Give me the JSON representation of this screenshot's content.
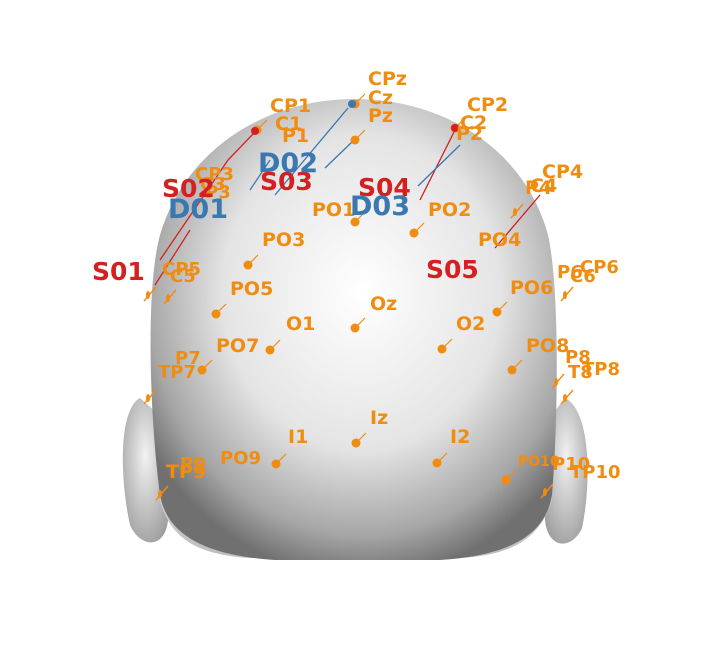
{
  "colors": {
    "electrode": "#f08c10",
    "source": "#d42020",
    "detector": "#3a78b0",
    "head_light": "#f4f4f4",
    "head_dark": "#7a7a7a"
  },
  "electrodes": [
    {
      "id": "e-cpz",
      "label": "CPz"
    },
    {
      "id": "e-cz",
      "label": "Cz"
    },
    {
      "id": "e-pz",
      "label": "Pz"
    },
    {
      "id": "e-cp1",
      "label": "CP1"
    },
    {
      "id": "e-c1",
      "label": "C1"
    },
    {
      "id": "e-p1",
      "label": "P1"
    },
    {
      "id": "e-cp2",
      "label": "CP2"
    },
    {
      "id": "e-c2",
      "label": "C2"
    },
    {
      "id": "e-p2",
      "label": "P2"
    },
    {
      "id": "e-cp3",
      "label": "CP3"
    },
    {
      "id": "e-c3",
      "label": "C3"
    },
    {
      "id": "e-p3",
      "label": "P3"
    },
    {
      "id": "e-cp4",
      "label": "CP4"
    },
    {
      "id": "e-c4",
      "label": "C4"
    },
    {
      "id": "e-p4",
      "label": "P4"
    },
    {
      "id": "e-po1",
      "label": "PO1"
    },
    {
      "id": "e-po2",
      "label": "PO2"
    },
    {
      "id": "e-po3",
      "label": "PO3"
    },
    {
      "id": "e-po4",
      "label": "PO4"
    },
    {
      "id": "e-cp5",
      "label": "CP5"
    },
    {
      "id": "e-c5",
      "label": "C5"
    },
    {
      "id": "e-po5",
      "label": "PO5"
    },
    {
      "id": "e-cp6",
      "label": "CP6"
    },
    {
      "id": "e-p6",
      "label": "P6"
    },
    {
      "id": "e-c6",
      "label": "C6"
    },
    {
      "id": "e-po6",
      "label": "PO6"
    },
    {
      "id": "e-o1",
      "label": "O1"
    },
    {
      "id": "e-oz",
      "label": "Oz"
    },
    {
      "id": "e-o2",
      "label": "O2"
    },
    {
      "id": "e-po7",
      "label": "PO7"
    },
    {
      "id": "e-p7",
      "label": "P7"
    },
    {
      "id": "e-tp7",
      "label": "TP7"
    },
    {
      "id": "e-po8",
      "label": "PO8"
    },
    {
      "id": "e-p8",
      "label": "P8"
    },
    {
      "id": "e-tp8",
      "label": "TP8"
    },
    {
      "id": "e-t8",
      "label": "T8"
    },
    {
      "id": "e-iz",
      "label": "Iz"
    },
    {
      "id": "e-i1",
      "label": "I1"
    },
    {
      "id": "e-i2",
      "label": "I2"
    },
    {
      "id": "e-po9",
      "label": "PO9"
    },
    {
      "id": "e-tp9",
      "label": "TP9"
    },
    {
      "id": "e-p9",
      "label": "P9"
    },
    {
      "id": "e-po10",
      "label": "PO10"
    },
    {
      "id": "e-p10",
      "label": "P10"
    },
    {
      "id": "e-tp10",
      "label": "TP10"
    }
  ],
  "sources": [
    {
      "id": "s01",
      "label": "S01"
    },
    {
      "id": "s02",
      "label": "S02"
    },
    {
      "id": "s03",
      "label": "S03"
    },
    {
      "id": "s04",
      "label": "S04"
    },
    {
      "id": "s05",
      "label": "S05"
    }
  ],
  "detectors": [
    {
      "id": "d01",
      "label": "D01"
    },
    {
      "id": "d02",
      "label": "D02"
    },
    {
      "id": "d03",
      "label": "D03"
    }
  ]
}
